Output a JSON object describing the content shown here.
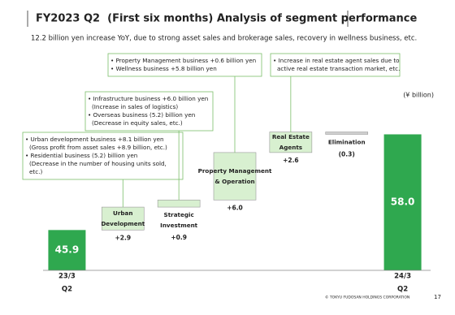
{
  "chart_data": {
    "type": "waterfall",
    "title": "FY2023 Q2  (First six months) Analysis of segment performance",
    "subtitle": "12.2 billion yen increase YoY, due to strong asset sales and brokerage sales, recovery in wellness business, etc.",
    "unit": "(¥ billion)",
    "categories": [
      [
        "23/3",
        "Q2"
      ],
      [
        "Urban",
        "Development"
      ],
      [
        "Strategic",
        "Investment"
      ],
      [
        "Property Management",
        "& Operation"
      ],
      [
        "Real Estate",
        "Agents"
      ],
      [
        "Elimination"
      ],
      [
        "24/3",
        "Q2"
      ]
    ],
    "values": [
      45.9,
      2.9,
      0.9,
      6.0,
      2.6,
      -0.3,
      58.0
    ],
    "value_labels": [
      "45.9",
      "+2.9",
      "+0.9",
      "+6.0",
      "+2.6",
      "(0.3)",
      "58.0"
    ],
    "colors": {
      "total": "#2fa84f",
      "increase": "#d8f0d0",
      "decrease": "#cfcfcf"
    },
    "ylim": [
      40.8,
      60
    ],
    "annotations": [
      {
        "lines": [
          "• Urban development business +8.1 billion yen",
          "(Gross profit from asset sales +8.9 billion, etc.)",
          "• Residential business  (5.2) billion yen",
          "(Decrease in the number of housing units sold,",
          "etc.)"
        ]
      },
      {
        "lines": [
          "• Infrastructure business +6.0 billion yen",
          "(Increase in sales of logistics)",
          "• Overseas business  (5.2) billion yen",
          "(Decrease in equity sales, etc.)"
        ]
      },
      {
        "lines": [
          "• Property Management business +0.6 billion yen",
          "• Wellness business +5.8 billion yen"
        ]
      },
      {
        "lines": [
          "• Increase in real estate agent sales due to",
          "active real estate transaction market, etc."
        ]
      }
    ],
    "footer": "© TOKYU FUDOSAN HOLDINGS CORPORATION",
    "page": "17"
  }
}
